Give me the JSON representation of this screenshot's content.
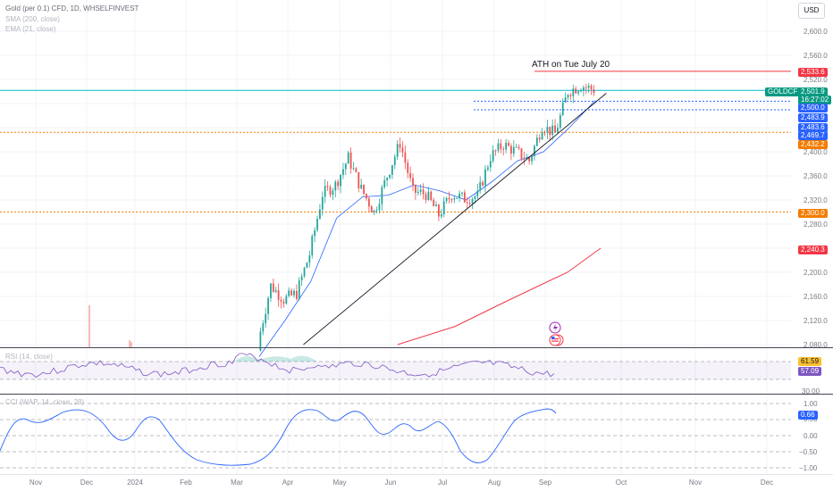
{
  "header": {
    "title": "Gold (per 0.1) CFD, 1D, WHSELFINVEST",
    "sma_label": "SMA (200, close)",
    "ema_label": "EMA (21, close)",
    "currency": "USD"
  },
  "annotation": "ATH on Tue July 20",
  "price_tags": {
    "symbol": "GOLDCFD",
    "last": "2,501.9",
    "countdown": "16:27:02",
    "ath": "2,533.6",
    "p2500": "2,500.0",
    "p2483a": "2,483.9",
    "p2483b": "2,483.6",
    "p2469": "2,469.7",
    "p2432": "2,432.2",
    "p2300": "2,300.0",
    "sma": "2,240.3"
  },
  "rsi": {
    "label": "RSI (14, close)",
    "value1": "61.59",
    "value2": "57.09",
    "level": "30.00"
  },
  "cci": {
    "label": "CCI (WAP, 14, close, 28)",
    "value": "0.66"
  },
  "colors": {
    "up": "#26a69a",
    "down": "#ef5350",
    "ema": "#2962ff",
    "sma": "#f23645",
    "last_line": "#00bcd4",
    "orange": "#f57c00",
    "rsi": "#7e57c2"
  },
  "chart_data": {
    "type": "candlestick",
    "symbol": "GOLDCFD",
    "y_ticks": [
      2600,
      2560,
      2520,
      2480,
      2440,
      2400,
      2360,
      2320,
      2280,
      2240,
      2200,
      2160,
      2120,
      2080
    ],
    "x_ticks": [
      "Nov",
      "Dec",
      "2024",
      "Feb",
      "Mar",
      "Apr",
      "May",
      "Jun",
      "Jul",
      "Aug",
      "Sep",
      "Oct",
      "Nov",
      "Dec"
    ],
    "horizontal_levels": [
      {
        "price": 2533.6,
        "style": "solid",
        "color": "#f23645"
      },
      {
        "price": 2501.9,
        "style": "solid",
        "color": "#00bcd4"
      },
      {
        "price": 2483.9,
        "style": "dotted",
        "color": "#2962ff"
      },
      {
        "price": 2469.7,
        "style": "dotted",
        "color": "#2962ff"
      },
      {
        "price": 2432.2,
        "style": "dotted",
        "color": "#f57c00"
      },
      {
        "price": 2300.0,
        "style": "dotted",
        "color": "#f57c00"
      }
    ],
    "close_points": [
      [
        "2024-03-01",
        2083
      ],
      [
        "2024-03-08",
        2178
      ],
      [
        "2024-03-15",
        2155
      ],
      [
        "2024-03-22",
        2165
      ],
      [
        "2024-03-29",
        2230
      ],
      [
        "2024-04-05",
        2330
      ],
      [
        "2024-04-12",
        2345
      ],
      [
        "2024-04-19",
        2390
      ],
      [
        "2024-04-26",
        2338
      ],
      [
        "2024-05-03",
        2300
      ],
      [
        "2024-05-10",
        2360
      ],
      [
        "2024-05-17",
        2415
      ],
      [
        "2024-05-24",
        2334
      ],
      [
        "2024-05-31",
        2330
      ],
      [
        "2024-06-07",
        2295
      ],
      [
        "2024-06-14",
        2330
      ],
      [
        "2024-06-21",
        2322
      ],
      [
        "2024-06-28",
        2327
      ],
      [
        "2024-07-05",
        2392
      ],
      [
        "2024-07-12",
        2412
      ],
      [
        "2024-07-19",
        2400
      ],
      [
        "2024-07-26",
        2385
      ],
      [
        "2024-08-02",
        2443
      ],
      [
        "2024-08-09",
        2430
      ],
      [
        "2024-08-16",
        2500
      ],
      [
        "2024-08-23",
        2510
      ],
      [
        "2024-08-30",
        2503
      ]
    ],
    "ema21_points": [
      [
        "2024-03-01",
        2060
      ],
      [
        "2024-03-15",
        2120
      ],
      [
        "2024-03-29",
        2185
      ],
      [
        "2024-04-12",
        2290
      ],
      [
        "2024-04-26",
        2325
      ],
      [
        "2024-05-10",
        2328
      ],
      [
        "2024-05-24",
        2345
      ],
      [
        "2024-06-07",
        2335
      ],
      [
        "2024-06-21",
        2320
      ],
      [
        "2024-07-05",
        2350
      ],
      [
        "2024-07-19",
        2385
      ],
      [
        "2024-08-02",
        2400
      ],
      [
        "2024-08-16",
        2440
      ],
      [
        "2024-08-30",
        2485
      ]
    ],
    "sma200_points": [
      [
        "2024-05-15",
        2080
      ],
      [
        "2024-06-15",
        2110
      ],
      [
        "2024-07-15",
        2155
      ],
      [
        "2024-08-15",
        2200
      ],
      [
        "2024-09-02",
        2240
      ]
    ],
    "trendline": [
      [
        "2024-03-25",
        2080
      ],
      [
        "2024-09-05",
        2497
      ]
    ]
  }
}
